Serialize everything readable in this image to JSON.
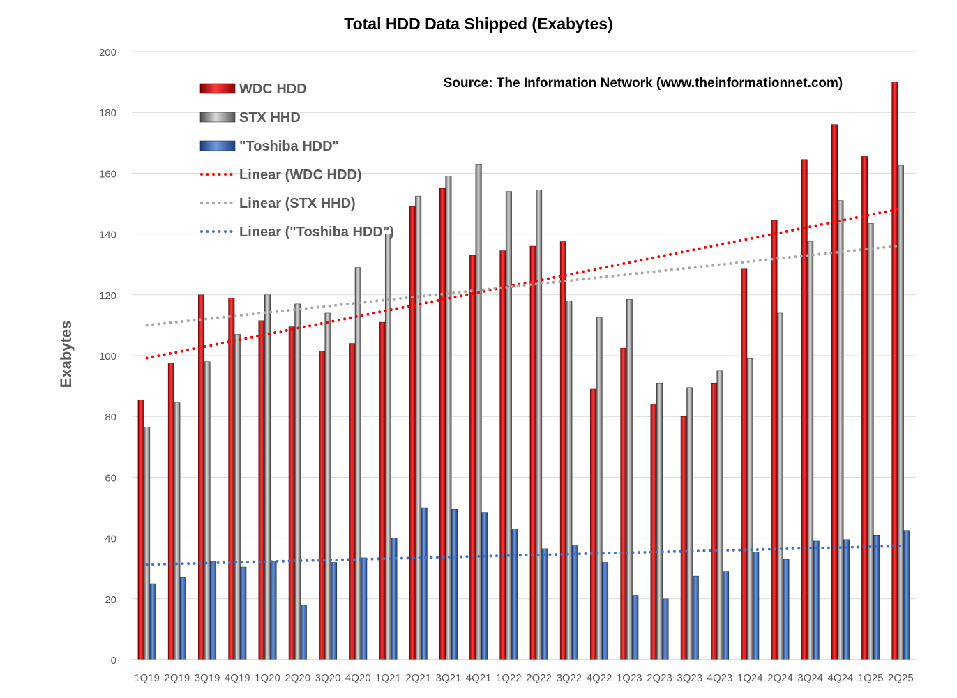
{
  "chart_data": {
    "type": "bar",
    "title": "Total HDD Data Shipped (Exabytes)",
    "source_note": "Source: The Information Network (www.theinformationnet.com)",
    "xlabel": "",
    "ylabel": "Exabytes",
    "ylim": [
      0,
      200
    ],
    "yticks": [
      0,
      20,
      40,
      60,
      80,
      100,
      120,
      140,
      160,
      180,
      200
    ],
    "grid": true,
    "legend_position": "top-left",
    "categories": [
      "1Q19",
      "2Q19",
      "3Q19",
      "4Q19",
      "1Q20",
      "2Q20",
      "3Q20",
      "4Q20",
      "1Q21",
      "2Q21",
      "3Q21",
      "4Q21",
      "1Q22",
      "2Q22",
      "3Q22",
      "4Q22",
      "1Q23",
      "2Q23",
      "3Q23",
      "4Q23",
      "1Q24",
      "2Q24",
      "3Q24",
      "4Q24",
      "1Q25",
      "2Q25"
    ],
    "series": [
      {
        "name": "WDC HDD",
        "color": "#c00000",
        "values": [
          85.5,
          97.5,
          120,
          119,
          111.5,
          109.5,
          101.5,
          104,
          111,
          149,
          155,
          133,
          134.5,
          136,
          137.5,
          89,
          102.5,
          84,
          80,
          91,
          128.5,
          144.5,
          164.5,
          176,
          165.5,
          190
        ]
      },
      {
        "name": "STX HHD",
        "color": "#7f7f7f",
        "values": [
          76.5,
          84.5,
          98,
          107,
          120,
          117,
          114,
          129,
          140,
          152.5,
          159,
          163,
          154,
          154.5,
          118,
          112.5,
          118.5,
          91,
          89.5,
          95,
          99,
          114,
          137.5,
          151,
          143.5,
          162.5
        ]
      },
      {
        "name": "\"Toshiba HDD\"",
        "color": "#2e5aa8",
        "values": [
          25,
          27,
          32.5,
          30.5,
          32.5,
          18,
          32,
          33.5,
          40,
          50,
          49.5,
          48.5,
          43,
          36.5,
          37.5,
          32,
          21,
          20,
          27.5,
          29,
          35.5,
          33,
          39,
          39.5,
          41,
          42.5
        ]
      }
    ],
    "trendlines": [
      {
        "name": "Linear (WDC HDD)",
        "color": "#ff0000",
        "start": 99.2,
        "end": 148.3
      },
      {
        "name": "Linear (STX HHD)",
        "color": "#a6a6a6",
        "start": 110,
        "end": 136.2
      },
      {
        "name": "Linear (\"Toshiba HDD\")",
        "color": "#4472c4",
        "start": 31.3,
        "end": 37.4
      }
    ]
  }
}
